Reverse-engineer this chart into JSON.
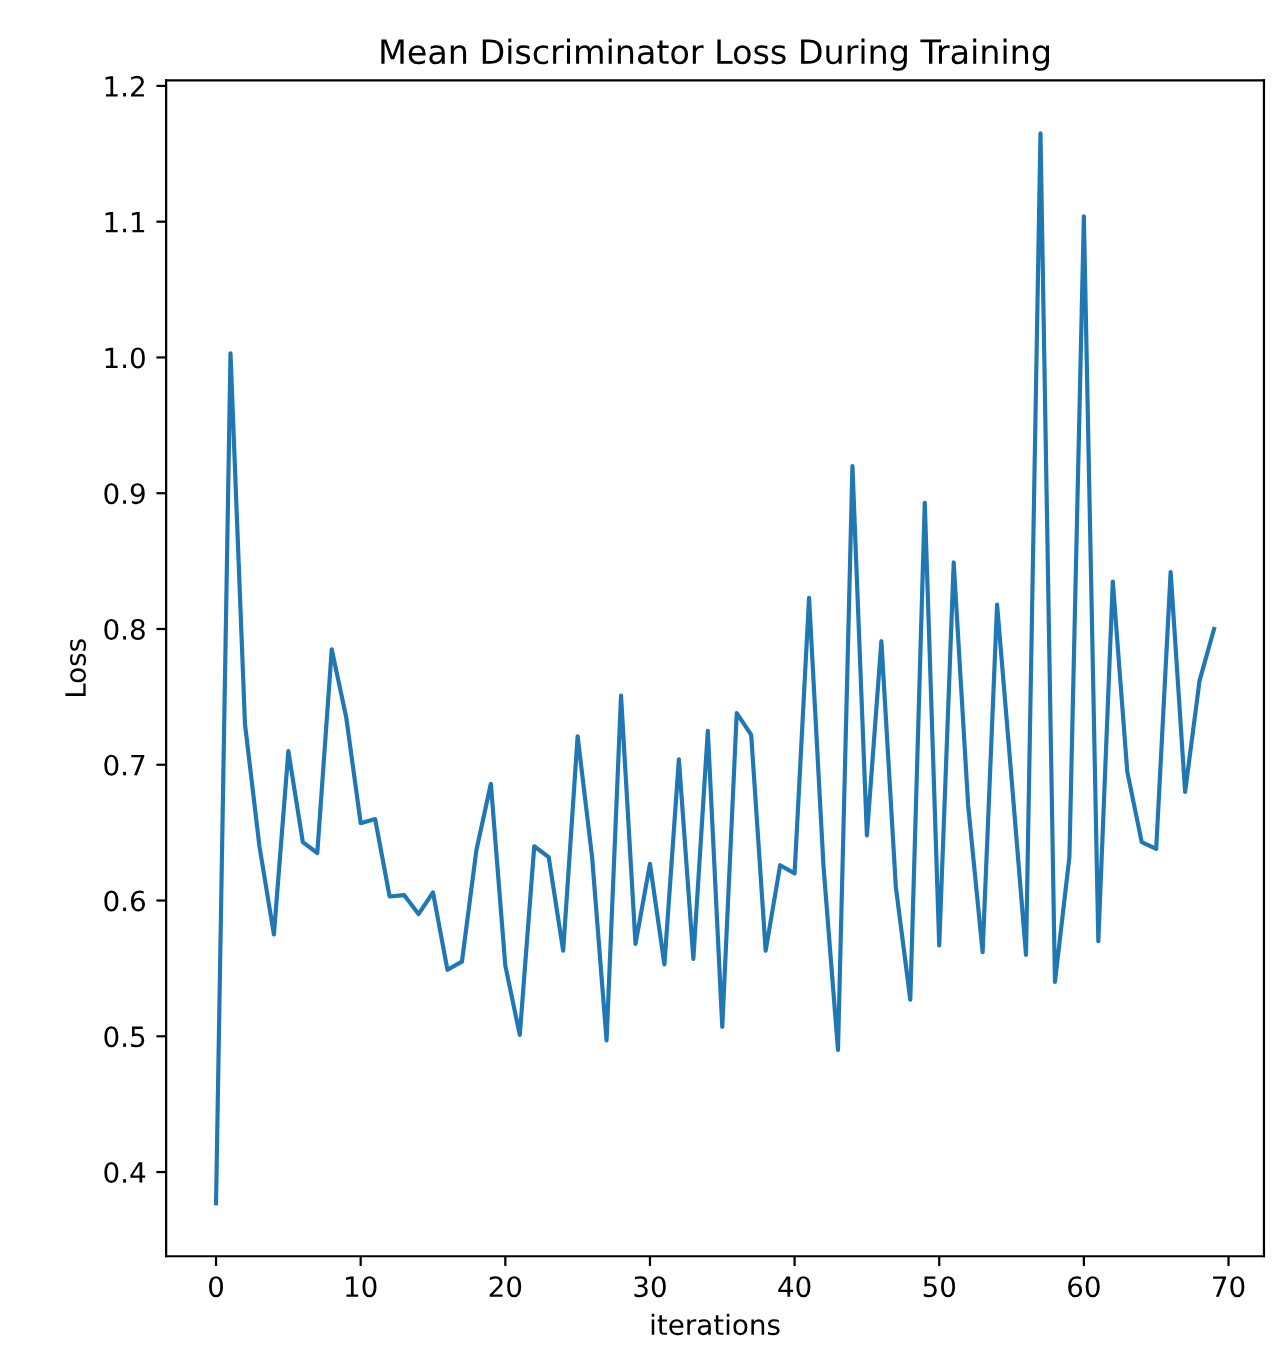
{
  "chart_data": {
    "type": "line",
    "title": "Mean Discriminator Loss During Training",
    "xlabel": "iterations",
    "ylabel": "Loss",
    "x": [
      0,
      1,
      2,
      3,
      4,
      5,
      6,
      7,
      8,
      9,
      10,
      11,
      12,
      13,
      14,
      15,
      16,
      17,
      18,
      19,
      20,
      21,
      22,
      23,
      24,
      25,
      26,
      27,
      28,
      29,
      30,
      31,
      32,
      33,
      34,
      35,
      36,
      37,
      38,
      39,
      40,
      41,
      42,
      43,
      44,
      45,
      46,
      47,
      48,
      49,
      50,
      51,
      52,
      53,
      54,
      55,
      56,
      57,
      58,
      59,
      60,
      61,
      62,
      63,
      64,
      65,
      66,
      67,
      68,
      69
    ],
    "series": [
      {
        "color": "#1f77b4",
        "values": [
          0.377,
          1.003,
          0.73,
          0.64,
          0.575,
          0.71,
          0.643,
          0.635,
          0.785,
          0.735,
          0.657,
          0.66,
          0.603,
          0.604,
          0.59,
          0.606,
          0.549,
          0.555,
          0.637,
          0.686,
          0.552,
          0.501,
          0.64,
          0.632,
          0.563,
          0.721,
          0.632,
          0.497,
          0.751,
          0.568,
          0.627,
          0.553,
          0.704,
          0.557,
          0.725,
          0.507,
          0.738,
          0.722,
          0.563,
          0.626,
          0.62,
          0.823,
          0.625,
          0.49,
          0.92,
          0.648,
          0.791,
          0.61,
          0.527,
          0.893,
          0.567,
          0.849,
          0.67,
          0.562,
          0.818,
          0.69,
          0.56,
          1.165,
          0.54,
          0.632,
          1.104,
          0.57,
          0.835,
          0.695,
          0.643,
          0.638,
          0.842,
          0.68,
          0.762,
          0.8
        ]
      }
    ],
    "xlim": [
      -3.45,
      72.45
    ],
    "ylim": [
      0.338,
      1.204
    ],
    "xticks": [
      0,
      10,
      20,
      30,
      40,
      50,
      60,
      70
    ],
    "yticks": [
      0.4,
      0.5,
      0.6,
      0.7,
      0.8,
      0.9,
      {
        "value": 1.0,
        "label": "1.0"
      },
      1.1,
      1.2
    ],
    "grid": false,
    "legend": false
  }
}
